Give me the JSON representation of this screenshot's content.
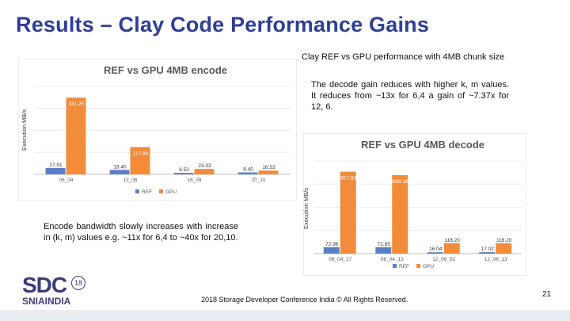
{
  "slide": {
    "title": "Results – Clay Code Performance Gains",
    "subtitle": "Clay REF vs GPU performance with 4MB chunk size",
    "decode_note": "The decode gain reduces with higher k, m values. It reduces from ~13x for 6,4 a gain of ~7.37x for 12, 6.",
    "encode_note": "Encode bandwidth slowly increases with increase in (k, m) values e.g. ~11x for 6,4 to ~40x for 20,10.",
    "footer": "2018 Storage Developer Conference India © All Rights Reserved.",
    "page_number": "21"
  },
  "logo": {
    "sdc": "SDC",
    "badge": "18",
    "snia": "SNIA",
    "india": "INDIA"
  },
  "colors": {
    "title": "#2f3e93",
    "ref": "#5b7fc7",
    "gpu": "#f28b3a"
  },
  "chart_data": [
    {
      "type": "bar",
      "title": "REF vs GPU 4MB encode",
      "ylabel": "Execution MB/s",
      "categories": [
        "06_04",
        "12_06",
        "16_09",
        "20_10"
      ],
      "series": [
        {
          "name": "REF",
          "values": [
            27.91,
            19.4,
            6.52,
            8.4
          ],
          "labels": [
            "27.91",
            "19.40",
            "6.52",
            "8.40"
          ]
        },
        {
          "name": "GPU",
          "values": [
            331.25,
            117.88,
            23.33,
            16.53
          ],
          "labels": [
            "331.25",
            "117.88",
            "23.33",
            "16.53"
          ]
        }
      ],
      "ylim": [
        0,
        380
      ],
      "legend": "bottom"
    },
    {
      "type": "bar",
      "title": "REF vs GPU 4MB decode",
      "ylabel": "Execution MB/s",
      "categories": [
        "06_04_17",
        "06_04_13",
        "12_06_52",
        "12_06_13"
      ],
      "series": [
        {
          "name": "REF",
          "values": [
            72.96,
            72.85,
            16.04,
            17.02
          ],
          "labels": [
            "72.96",
            "72.85",
            "16.04",
            "17.02"
          ]
        },
        {
          "name": "GPU",
          "values": [
            927.83,
            889.18,
            118.2,
            118.2
          ],
          "labels": [
            "927.83",
            "889.18",
            "118.20",
            "118.20"
          ]
        }
      ],
      "ylim": [
        0,
        1050
      ],
      "legend": "bottom"
    }
  ]
}
